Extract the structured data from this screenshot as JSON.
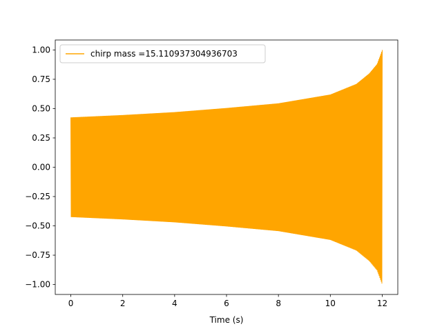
{
  "chart_data": {
    "type": "line",
    "title": "",
    "xlabel": "Time (s)",
    "ylabel": "",
    "xlim": [
      -0.6,
      12.6
    ],
    "ylim": [
      -1.085,
      1.085
    ],
    "xticks": [
      0,
      2,
      4,
      6,
      8,
      10,
      12
    ],
    "xtick_labels": [
      "0",
      "2",
      "4",
      "6",
      "8",
      "10",
      "12"
    ],
    "yticks": [
      -1.0,
      -0.75,
      -0.5,
      -0.25,
      0.0,
      0.25,
      0.5,
      0.75,
      1.0
    ],
    "ytick_labels": [
      "−1.00",
      "−0.75",
      "−0.50",
      "−0.25",
      "0.00",
      "0.25",
      "0.50",
      "0.75",
      "1.00"
    ],
    "grid": false,
    "legend": {
      "position": "upper-left"
    },
    "series": [
      {
        "name": "chirp mass =15.110937304936703",
        "color": "#ffa500",
        "style": "chirp-oscillation",
        "x_range": [
          0,
          12
        ],
        "envelope_x": [
          0,
          2,
          4,
          6,
          8,
          10,
          11,
          11.5,
          11.8,
          12
        ],
        "envelope_amplitude": [
          0.425,
          0.445,
          0.47,
          0.505,
          0.545,
          0.62,
          0.71,
          0.8,
          0.88,
          1.0
        ]
      }
    ]
  }
}
